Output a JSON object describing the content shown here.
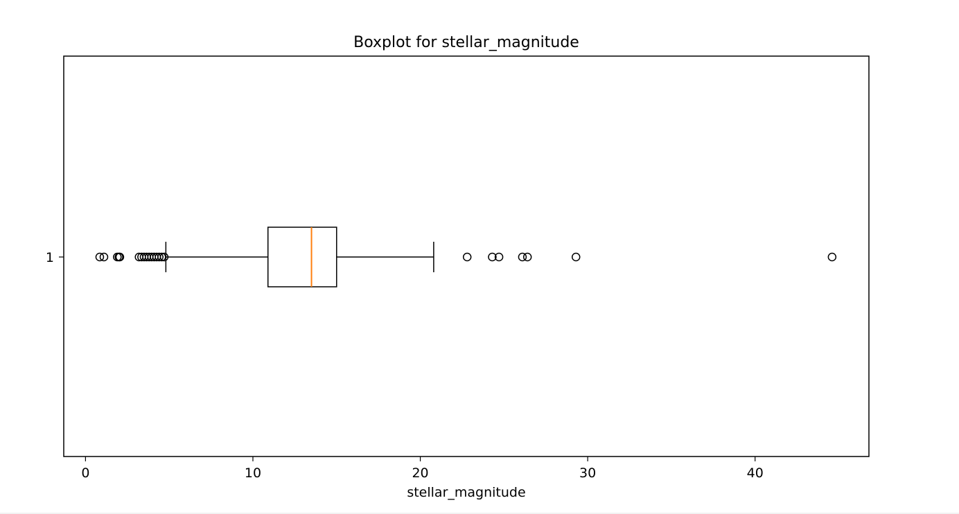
{
  "chart_data": {
    "type": "boxplot",
    "orientation": "horizontal",
    "title": "Boxplot for stellar_magnitude",
    "xlabel": "stellar_magnitude",
    "ylabel": "",
    "xlim": [
      -1.3,
      46.8
    ],
    "xticks": [
      0,
      10,
      20,
      30,
      40
    ],
    "categories": [
      "1"
    ],
    "box": {
      "whisker_low": 4.8,
      "q1": 10.9,
      "median": 13.5,
      "q3": 15.0,
      "whisker_high": 20.8
    },
    "outliers": [
      0.85,
      1.1,
      1.9,
      2.0,
      2.05,
      3.2,
      3.35,
      3.5,
      3.65,
      3.8,
      3.95,
      4.1,
      4.25,
      4.4,
      4.55,
      4.7,
      22.8,
      24.3,
      24.7,
      26.1,
      26.4,
      29.3,
      44.6
    ],
    "grid": false,
    "colors": {
      "box": "#000000",
      "median": "#ff7f0e",
      "outlier_edge": "#000000"
    }
  }
}
